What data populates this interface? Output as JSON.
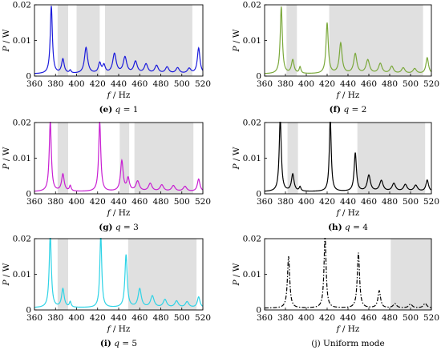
{
  "figure": {
    "xlabel_var": "f",
    "xlabel_unit": " / Hz",
    "ylabel_var": "P",
    "ylabel_unit": " / W"
  },
  "chart_data": [
    {
      "type": "line",
      "caption_tag": "(e)",
      "caption_text": " q = 1",
      "line_color": "#1a1adb",
      "line_style": "solid",
      "xlim": [
        360,
        520
      ],
      "ylim": [
        0,
        0.02
      ],
      "x_ticks": [
        360,
        380,
        400,
        420,
        440,
        460,
        480,
        500,
        520
      ],
      "y_ticks": [
        0,
        0.01,
        0.02
      ],
      "y_tick_labels": [
        "0",
        "0.01",
        "0.02"
      ],
      "grid": false,
      "shaded_bands": [
        [
          382,
          392
        ],
        [
          400,
          422
        ],
        [
          427,
          510
        ]
      ],
      "peaks": [
        {
          "x": 376,
          "y": 0.019,
          "w": 1.2
        },
        {
          "x": 387,
          "y": 0.004,
          "w": 1.5
        },
        {
          "x": 394,
          "y": 0.0008,
          "w": 1.0
        },
        {
          "x": 409,
          "y": 0.0073,
          "w": 1.8
        },
        {
          "x": 422,
          "y": 0.0028,
          "w": 1.5
        },
        {
          "x": 426,
          "y": 0.0022,
          "w": 1.5
        },
        {
          "x": 436,
          "y": 0.0055,
          "w": 2.0
        },
        {
          "x": 446,
          "y": 0.0045,
          "w": 2.0
        },
        {
          "x": 456,
          "y": 0.0033,
          "w": 2.0
        },
        {
          "x": 466,
          "y": 0.0026,
          "w": 2.0
        },
        {
          "x": 476,
          "y": 0.0022,
          "w": 2.0
        },
        {
          "x": 486,
          "y": 0.0018,
          "w": 2.0
        },
        {
          "x": 496,
          "y": 0.0016,
          "w": 2.0
        },
        {
          "x": 507,
          "y": 0.0014,
          "w": 2.0
        },
        {
          "x": 516,
          "y": 0.0072,
          "w": 1.5
        }
      ],
      "baseline": 0.0006
    },
    {
      "type": "line",
      "caption_tag": "(f)",
      "caption_text": " q = 2",
      "line_color": "#7aa83a",
      "line_style": "solid",
      "xlim": [
        360,
        520
      ],
      "ylim": [
        0,
        0.02
      ],
      "x_ticks": [
        360,
        380,
        400,
        420,
        440,
        460,
        480,
        500,
        520
      ],
      "y_ticks": [
        0,
        0.01,
        0.02
      ],
      "y_tick_labels": [
        "0",
        "0.01",
        "0.02"
      ],
      "grid": false,
      "shaded_bands": [
        [
          381,
          391
        ],
        [
          422,
          512
        ]
      ],
      "peaks": [
        {
          "x": 376,
          "y": 0.0188,
          "w": 1.2
        },
        {
          "x": 387,
          "y": 0.0038,
          "w": 1.5
        },
        {
          "x": 394,
          "y": 0.0018,
          "w": 1.0
        },
        {
          "x": 420,
          "y": 0.0142,
          "w": 1.3
        },
        {
          "x": 433,
          "y": 0.0085,
          "w": 1.6
        },
        {
          "x": 447,
          "y": 0.0055,
          "w": 1.8
        },
        {
          "x": 459,
          "y": 0.0038,
          "w": 2.0
        },
        {
          "x": 471,
          "y": 0.0028,
          "w": 2.0
        },
        {
          "x": 482,
          "y": 0.002,
          "w": 2.0
        },
        {
          "x": 493,
          "y": 0.0016,
          "w": 2.0
        },
        {
          "x": 504,
          "y": 0.0014,
          "w": 2.0
        },
        {
          "x": 516,
          "y": 0.0045,
          "w": 1.5
        }
      ],
      "baseline": 0.0006
    },
    {
      "type": "line",
      "caption_tag": "(g)",
      "caption_text": " q = 3",
      "line_color": "#c81ed2",
      "line_style": "solid",
      "xlim": [
        360,
        520
      ],
      "ylim": [
        0,
        0.02
      ],
      "x_ticks": [
        360,
        380,
        400,
        420,
        440,
        460,
        480,
        500,
        520
      ],
      "y_ticks": [
        0,
        0.01,
        0.02
      ],
      "y_tick_labels": [
        "0",
        "0.01",
        "0.02"
      ],
      "grid": false,
      "shaded_bands": [
        [
          382,
          392
        ],
        [
          441,
          450
        ],
        [
          455,
          511
        ]
      ],
      "peaks": [
        {
          "x": 375,
          "y": 0.0195,
          "w": 1.2
        },
        {
          "x": 387,
          "y": 0.0048,
          "w": 1.5
        },
        {
          "x": 394,
          "y": 0.0015,
          "w": 1.0
        },
        {
          "x": 422,
          "y": 0.0195,
          "w": 1.2
        },
        {
          "x": 443,
          "y": 0.0085,
          "w": 1.5
        },
        {
          "x": 449,
          "y": 0.0035,
          "w": 1.5
        },
        {
          "x": 458,
          "y": 0.0028,
          "w": 2.0
        },
        {
          "x": 470,
          "y": 0.0022,
          "w": 2.0
        },
        {
          "x": 481,
          "y": 0.0018,
          "w": 2.0
        },
        {
          "x": 492,
          "y": 0.0016,
          "w": 2.0
        },
        {
          "x": 503,
          "y": 0.0014,
          "w": 2.0
        },
        {
          "x": 516,
          "y": 0.0035,
          "w": 1.5
        }
      ],
      "baseline": 0.0006
    },
    {
      "type": "line",
      "caption_tag": "(h)",
      "caption_text": " q = 4",
      "line_color": "#000000",
      "line_style": "solid",
      "xlim": [
        360,
        520
      ],
      "ylim": [
        0,
        0.02
      ],
      "x_ticks": [
        360,
        380,
        400,
        420,
        440,
        460,
        480,
        500,
        520
      ],
      "y_ticks": [
        0,
        0.01,
        0.02
      ],
      "y_tick_labels": [
        "0",
        "0.01",
        "0.02"
      ],
      "grid": false,
      "shaded_bands": [
        [
          382,
          392
        ],
        [
          449,
          514
        ]
      ],
      "peaks": [
        {
          "x": 375,
          "y": 0.0205,
          "w": 1.2
        },
        {
          "x": 387,
          "y": 0.0048,
          "w": 1.5
        },
        {
          "x": 394,
          "y": 0.0012,
          "w": 1.0
        },
        {
          "x": 423,
          "y": 0.0205,
          "w": 1.1
        },
        {
          "x": 447,
          "y": 0.0108,
          "w": 1.3
        },
        {
          "x": 460,
          "y": 0.0045,
          "w": 1.8
        },
        {
          "x": 472,
          "y": 0.003,
          "w": 2.0
        },
        {
          "x": 484,
          "y": 0.0022,
          "w": 2.0
        },
        {
          "x": 495,
          "y": 0.0019,
          "w": 2.0
        },
        {
          "x": 505,
          "y": 0.0017,
          "w": 2.0
        },
        {
          "x": 516,
          "y": 0.0032,
          "w": 1.5
        }
      ],
      "baseline": 0.0006
    },
    {
      "type": "line",
      "caption_tag": "(i)",
      "caption_text": " q = 5",
      "line_color": "#2ed3e6",
      "line_style": "solid",
      "xlim": [
        360,
        520
      ],
      "ylim": [
        0,
        0.02
      ],
      "x_ticks": [
        360,
        380,
        400,
        420,
        440,
        460,
        480,
        500,
        520
      ],
      "y_ticks": [
        0,
        0.01,
        0.02
      ],
      "y_tick_labels": [
        "0",
        "0.01",
        "0.02"
      ],
      "grid": false,
      "shaded_bands": [
        [
          382,
          392
        ],
        [
          449,
          514
        ]
      ],
      "peaks": [
        {
          "x": 375,
          "y": 0.0205,
          "w": 1.2
        },
        {
          "x": 387,
          "y": 0.0052,
          "w": 1.5
        },
        {
          "x": 394,
          "y": 0.0015,
          "w": 1.0
        },
        {
          "x": 423,
          "y": 0.0205,
          "w": 1.1
        },
        {
          "x": 447,
          "y": 0.0148,
          "w": 1.3
        },
        {
          "x": 460,
          "y": 0.0052,
          "w": 1.8
        },
        {
          "x": 472,
          "y": 0.0032,
          "w": 2.0
        },
        {
          "x": 484,
          "y": 0.0022,
          "w": 2.0
        },
        {
          "x": 495,
          "y": 0.0018,
          "w": 2.0
        },
        {
          "x": 505,
          "y": 0.0016,
          "w": 2.0
        },
        {
          "x": 516,
          "y": 0.003,
          "w": 1.5
        }
      ],
      "baseline": 0.0006
    },
    {
      "type": "line",
      "caption_tag": "",
      "caption_text": "(j) Uniform mode",
      "line_color": "#000000",
      "line_style": "dash-dot",
      "xlim": [
        360,
        520
      ],
      "ylim": [
        0,
        0.02
      ],
      "x_ticks": [
        360,
        380,
        400,
        420,
        440,
        460,
        480,
        500,
        520
      ],
      "y_ticks": [
        0,
        0.01,
        0.02
      ],
      "y_tick_labels": [
        "0",
        "0.01",
        "0.02"
      ],
      "grid": false,
      "shaded_bands": [
        [
          481,
          520
        ]
      ],
      "peaks": [
        {
          "x": 383,
          "y": 0.0145,
          "w": 1.3
        },
        {
          "x": 418,
          "y": 0.0202,
          "w": 1.2
        },
        {
          "x": 450,
          "y": 0.0155,
          "w": 1.3
        },
        {
          "x": 470,
          "y": 0.0048,
          "w": 1.5
        },
        {
          "x": 485,
          "y": 0.0012,
          "w": 2.0
        },
        {
          "x": 500,
          "y": 0.0011,
          "w": 2.0
        },
        {
          "x": 514,
          "y": 0.0013,
          "w": 2.0
        }
      ],
      "baseline": 0.0005
    }
  ]
}
